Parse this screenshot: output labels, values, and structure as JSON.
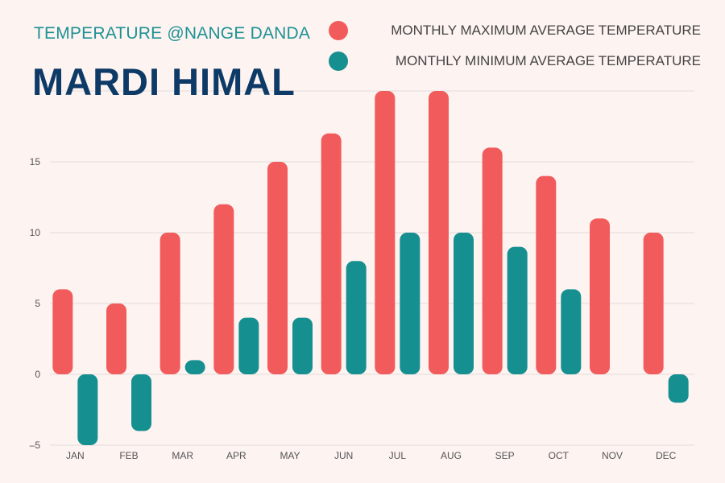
{
  "header": {
    "subtitle": "TEMPERATURE @NANGE DANDA",
    "title": "MARDI HIMAL"
  },
  "legend": {
    "max_label": "MONTHLY MAXIMUM AVERAGE TEMPERATURE",
    "min_label": "MONTHLY MINIMUM AVERAGE TEMPERATURE"
  },
  "colors": {
    "max": "#f25b5b",
    "min": "#168f90",
    "title": "#0d3a66",
    "subtitle": "#1e9294",
    "grid": "#e4dcda",
    "axis_text": "#555555"
  },
  "chart_data": {
    "type": "bar",
    "title": "MARDI HIMAL",
    "subtitle": "TEMPERATURE @NANGE DANDA",
    "categories": [
      "JAN",
      "FEB",
      "MAR",
      "APR",
      "MAY",
      "JUN",
      "JUL",
      "AUG",
      "SEP",
      "OCT",
      "NOV",
      "DEC"
    ],
    "series": [
      {
        "name": "MONTHLY MAXIMUM AVERAGE TEMPERATURE",
        "values": [
          6,
          5,
          10,
          12,
          15,
          17,
          20,
          20,
          16,
          14,
          11,
          10
        ]
      },
      {
        "name": "MONTHLY MINIMUM AVERAGE TEMPERATURE",
        "values": [
          -5,
          -4,
          1,
          4,
          4,
          8,
          10,
          10,
          9,
          6,
          0,
          -2
        ]
      }
    ],
    "yticks": [
      -5,
      0,
      5,
      10,
      15
    ],
    "ylim": [
      -5,
      20
    ],
    "grid": true,
    "legend_position": "top-right"
  }
}
